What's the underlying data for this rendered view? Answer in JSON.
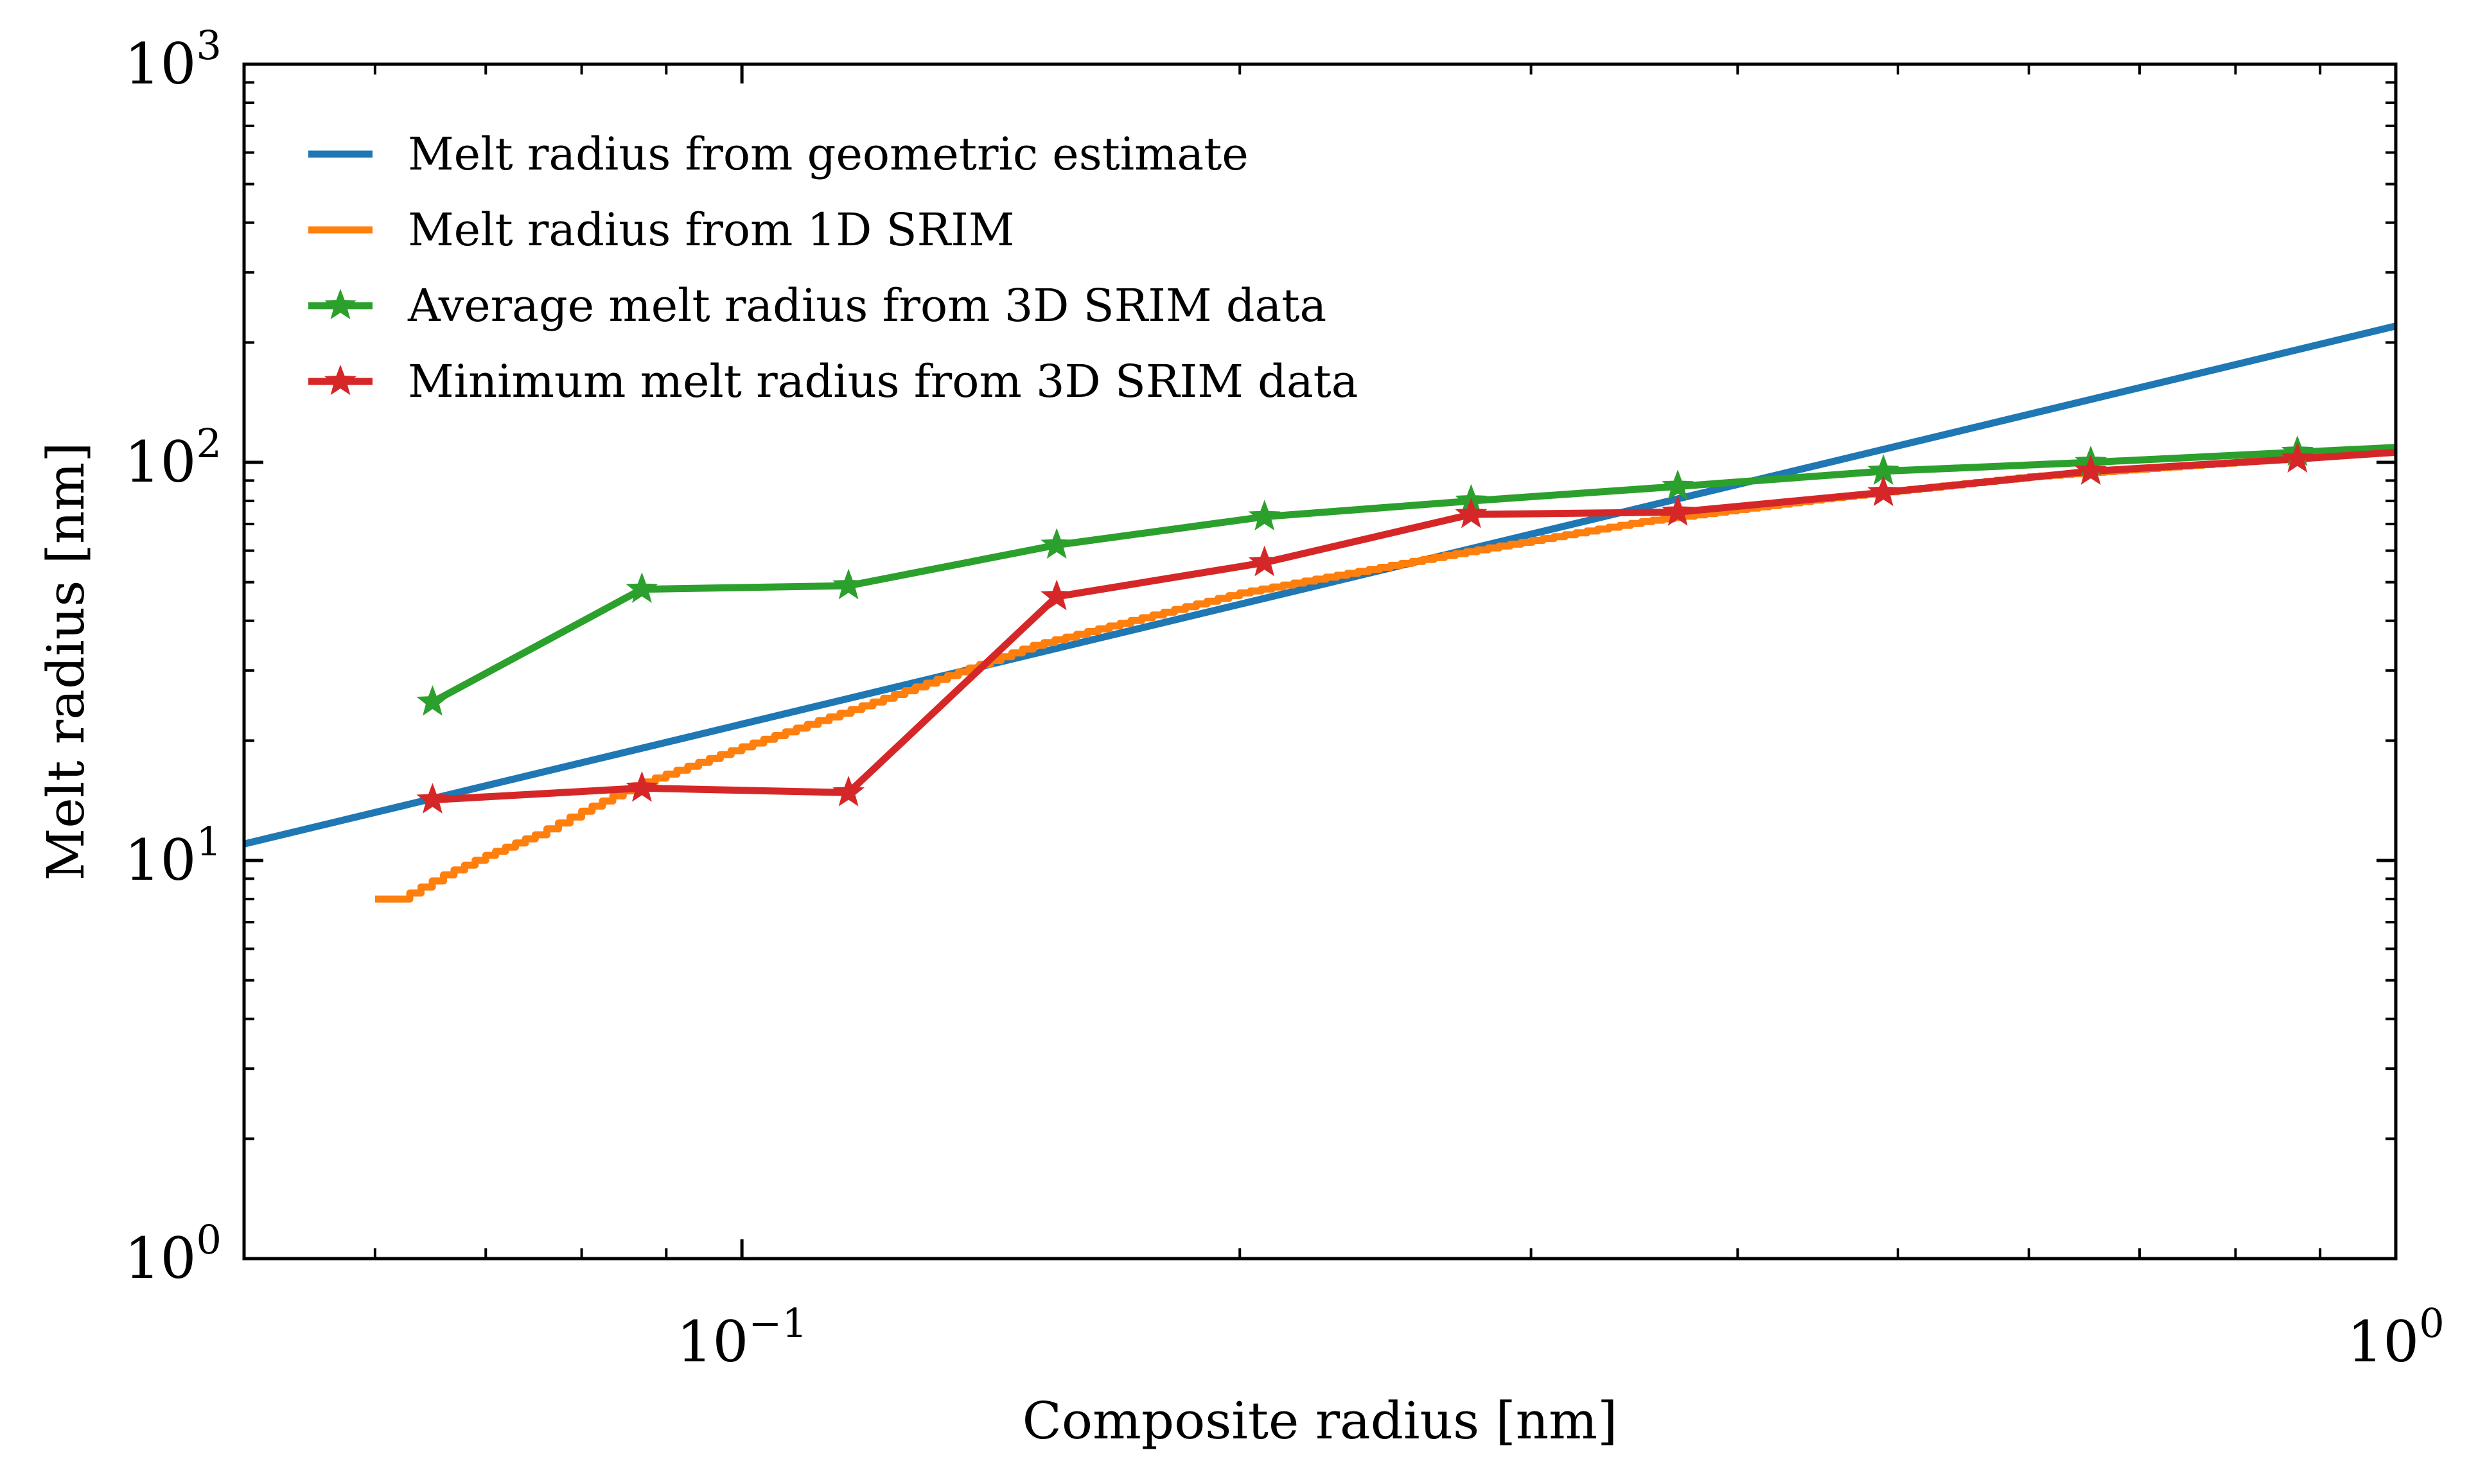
{
  "chart_data": {
    "type": "line",
    "xlabel": "Composite radius [nm]",
    "ylabel": "Melt radius [nm]",
    "xscale": "log",
    "yscale": "log",
    "xlim": [
      0.05,
      1.0
    ],
    "ylim": [
      1,
      1000
    ],
    "legend_placement": "top-left",
    "x_ticks": [
      {
        "value": 0.1,
        "base": "10",
        "exp": "−1"
      },
      {
        "value": 1.0,
        "base": "10",
        "exp": "0"
      }
    ],
    "y_ticks": [
      {
        "value": 1,
        "base": "10",
        "exp": "0"
      },
      {
        "value": 10,
        "base": "10",
        "exp": "1"
      },
      {
        "value": 100,
        "base": "10",
        "exp": "2"
      },
      {
        "value": 1000,
        "base": "10",
        "exp": "3"
      }
    ],
    "series": [
      {
        "name": "Melt radius from geometric estimate",
        "color": "#1f77b4",
        "marker": "none",
        "step": false,
        "x": [
          0.05,
          1.0
        ],
        "y": [
          11,
          220
        ]
      },
      {
        "name": "Melt radius from 1D SRIM",
        "color": "#ff7f0e",
        "marker": "none",
        "step": true,
        "x": [
          0.06,
          0.062,
          0.066,
          0.07,
          0.075,
          0.08,
          0.086,
          0.1,
          0.12,
          0.15,
          0.2,
          0.27,
          0.35,
          0.45,
          0.6,
          0.8,
          1.0
        ],
        "y": [
          8.0,
          8.0,
          9.2,
          10.3,
          11.6,
          13.3,
          15.4,
          19.3,
          25.0,
          34.7,
          47.0,
          59.0,
          71.0,
          81.0,
          92.0,
          100.0,
          107.0
        ]
      },
      {
        "name": "Average melt radius from 3D SRIM data",
        "color": "#2ca02c",
        "marker": "star",
        "step": false,
        "x": [
          0.065,
          0.087,
          0.116,
          0.155,
          0.207,
          0.276,
          0.368,
          0.49,
          0.654,
          0.872,
          1.0
        ],
        "y": [
          25,
          48,
          49,
          62,
          73,
          80,
          87,
          95,
          100,
          106,
          109
        ]
      },
      {
        "name": "Minimum melt radius from 3D SRIM data",
        "color": "#d62728",
        "marker": "star",
        "step": false,
        "x": [
          0.065,
          0.087,
          0.116,
          0.155,
          0.207,
          0.276,
          0.368,
          0.49,
          0.654,
          0.872,
          1.0
        ],
        "y": [
          14.2,
          15.2,
          14.8,
          46,
          56,
          74,
          75,
          84,
          95,
          102,
          106
        ]
      }
    ]
  }
}
